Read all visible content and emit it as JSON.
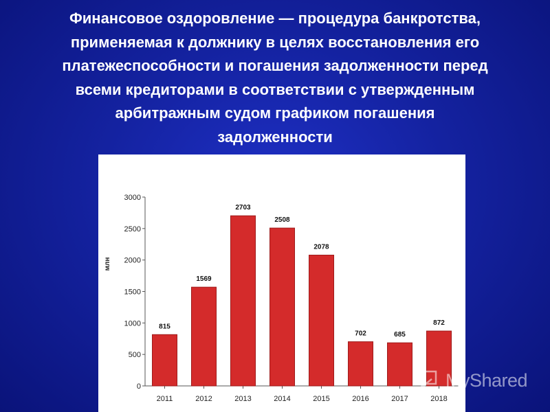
{
  "slide": {
    "title_lines": [
      "Финансовое оздоровление — процедура банкротства,",
      "применяемая к должнику в целях восстановления его",
      "платежеспособности и погашения задолженности перед",
      "всеми кредиторами в соответствии с утвержденным",
      "арбитражным судом графиком погашения",
      "задолженности"
    ],
    "background_color": "#1422a0",
    "title_color": "#ffffff"
  },
  "chart_data": {
    "type": "bar",
    "title": "",
    "xlabel": "",
    "ylabel": "млн",
    "categories": [
      "2011",
      "2012",
      "2013",
      "2014",
      "2015",
      "2016",
      "2017",
      "2018"
    ],
    "values": [
      815,
      1569,
      2703,
      2508,
      2078,
      702,
      685,
      872
    ],
    "data_labels": [
      "815",
      "1569",
      "2703",
      "2508",
      "2078",
      "702",
      "685",
      "872"
    ],
    "ylim": [
      0,
      3000
    ],
    "yticks": [
      0,
      500,
      1000,
      1500,
      2000,
      2500,
      3000
    ],
    "grid": false,
    "legend": "none",
    "bar_color": "#d42b2b",
    "bar_edge_color": "#9e1a1a"
  },
  "watermark": {
    "text": "MyShared",
    "logo_icon": "projector-presenter-icon"
  }
}
